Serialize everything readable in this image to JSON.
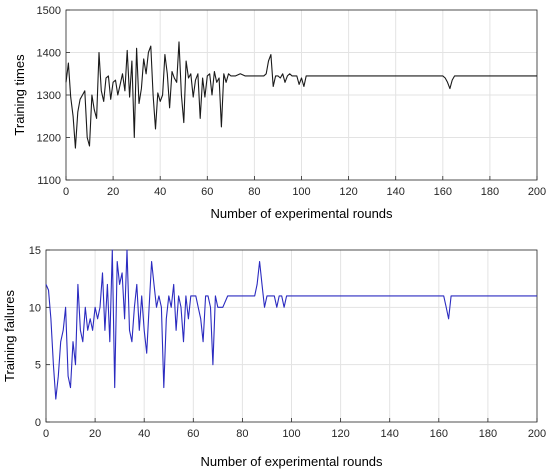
{
  "chart_data": [
    {
      "type": "line",
      "title": "",
      "xlabel": "Number of experimental rounds",
      "ylabel": "Training times",
      "xlim": [
        0,
        200
      ],
      "ylim": [
        1100,
        1500
      ],
      "xticks": [
        0,
        20,
        40,
        60,
        80,
        100,
        120,
        140,
        160,
        180,
        200
      ],
      "yticks": [
        1100,
        1200,
        1300,
        1400,
        1500
      ],
      "grid": true,
      "series": [
        {
          "color": "#1a1a1a",
          "x": [
            0,
            1,
            2,
            3,
            4,
            5,
            6,
            7,
            8,
            9,
            10,
            11,
            12,
            13,
            14,
            15,
            16,
            17,
            18,
            19,
            20,
            21,
            22,
            23,
            24,
            25,
            26,
            27,
            28,
            29,
            30,
            31,
            32,
            33,
            34,
            35,
            36,
            37,
            38,
            39,
            40,
            41,
            42,
            43,
            44,
            45,
            46,
            47,
            48,
            49,
            50,
            51,
            52,
            53,
            54,
            55,
            56,
            57,
            58,
            59,
            60,
            61,
            62,
            63,
            64,
            65,
            66,
            67,
            68,
            69,
            70,
            72,
            74,
            76,
            78,
            80,
            82,
            84,
            85,
            86,
            87,
            88,
            89,
            90,
            91,
            92,
            93,
            94,
            95,
            96,
            97,
            98,
            99,
            100,
            101,
            102,
            104,
            120,
            140,
            160,
            161,
            162,
            163,
            164,
            165,
            166,
            170,
            200
          ],
          "y": [
            1330,
            1375,
            1295,
            1250,
            1175,
            1260,
            1290,
            1300,
            1310,
            1200,
            1180,
            1300,
            1265,
            1245,
            1400,
            1310,
            1285,
            1340,
            1345,
            1290,
            1330,
            1335,
            1300,
            1325,
            1350,
            1310,
            1405,
            1295,
            1380,
            1200,
            1410,
            1280,
            1315,
            1385,
            1350,
            1400,
            1415,
            1300,
            1220,
            1305,
            1285,
            1300,
            1395,
            1350,
            1270,
            1355,
            1340,
            1330,
            1425,
            1300,
            1235,
            1380,
            1340,
            1350,
            1295,
            1335,
            1350,
            1245,
            1340,
            1295,
            1345,
            1350,
            1300,
            1355,
            1330,
            1340,
            1225,
            1350,
            1330,
            1350,
            1345,
            1345,
            1350,
            1345,
            1345,
            1345,
            1345,
            1345,
            1350,
            1380,
            1395,
            1320,
            1345,
            1345,
            1340,
            1350,
            1330,
            1345,
            1350,
            1345,
            1345,
            1345,
            1325,
            1340,
            1320,
            1345,
            1345,
            1345,
            1345,
            1345,
            1340,
            1330,
            1315,
            1335,
            1345,
            1345,
            1345,
            1345
          ]
        }
      ]
    },
    {
      "type": "line",
      "title": "",
      "xlabel": "Number of experimental rounds",
      "ylabel": "Training failures",
      "xlim": [
        0,
        200
      ],
      "ylim": [
        0,
        15
      ],
      "xticks": [
        0,
        20,
        40,
        60,
        80,
        100,
        120,
        140,
        160,
        180,
        200
      ],
      "yticks": [
        0,
        5,
        10,
        15
      ],
      "grid": true,
      "series": [
        {
          "color": "#2b2bc0",
          "x": [
            0,
            1,
            2,
            3,
            4,
            5,
            6,
            7,
            8,
            9,
            10,
            11,
            12,
            13,
            14,
            15,
            16,
            17,
            18,
            19,
            20,
            21,
            22,
            23,
            24,
            25,
            26,
            27,
            28,
            29,
            30,
            31,
            32,
            33,
            34,
            35,
            36,
            37,
            38,
            39,
            40,
            41,
            42,
            43,
            44,
            45,
            46,
            47,
            48,
            49,
            50,
            51,
            52,
            53,
            54,
            55,
            56,
            57,
            58,
            59,
            60,
            61,
            62,
            63,
            64,
            65,
            66,
            67,
            68,
            69,
            70,
            72,
            74,
            76,
            78,
            80,
            82,
            84,
            85,
            86,
            87,
            88,
            89,
            90,
            91,
            92,
            93,
            94,
            95,
            96,
            97,
            98,
            100,
            120,
            140,
            160,
            162,
            163,
            164,
            165,
            166,
            170,
            200
          ],
          "y": [
            12,
            11.5,
            9,
            5,
            2,
            4,
            7,
            8,
            10,
            4,
            3,
            7,
            5,
            12,
            8,
            7,
            10,
            8,
            9,
            8,
            10,
            9,
            10,
            13,
            8,
            12,
            7,
            15,
            3,
            14,
            12,
            13,
            9,
            15,
            8,
            7,
            10,
            12,
            8,
            11,
            8,
            6,
            10,
            14,
            12,
            10,
            11,
            10,
            3,
            9,
            11,
            10,
            12,
            8,
            11,
            10,
            7,
            11,
            9,
            11,
            11,
            11,
            10,
            9,
            7,
            11,
            11,
            10,
            5,
            11,
            10,
            10,
            11,
            11,
            11,
            11,
            11,
            11,
            11,
            12,
            14,
            12,
            10,
            11,
            11,
            11,
            11,
            10,
            11,
            11,
            10,
            11,
            11,
            11,
            11,
            11,
            11,
            10,
            9,
            11,
            11,
            11,
            11
          ]
        }
      ]
    }
  ]
}
